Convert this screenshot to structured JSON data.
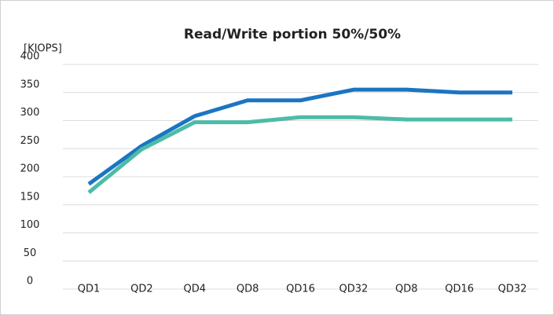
{
  "chart_data": {
    "type": "line",
    "title": "Read/Write portion 50%/50%",
    "y_axis_label": "[KIOPS]",
    "categories": [
      "QD1",
      "QD2",
      "QD4",
      "QD8",
      "QD16",
      "QD32",
      "QD8",
      "QD16",
      "QD32"
    ],
    "series": [
      {
        "color": "#1b75c2",
        "values": [
          187,
          255,
          308,
          336,
          336,
          355,
          355,
          350,
          350
        ]
      },
      {
        "color": "#4dbca6",
        "values": [
          172,
          249,
          297,
          297,
          306,
          306,
          302,
          302,
          302
        ]
      }
    ],
    "ylim": [
      0,
      400
    ],
    "yticks": [
      0,
      50,
      100,
      150,
      200,
      250,
      300,
      350,
      400
    ],
    "grid": true
  }
}
